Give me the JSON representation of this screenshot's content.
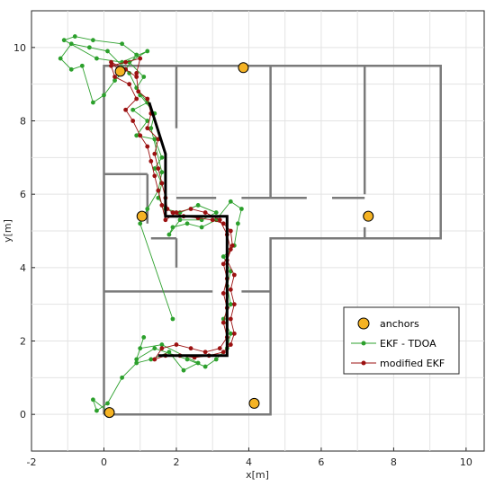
{
  "chart_data": {
    "type": "line",
    "title": "",
    "xlabel": "x[m]",
    "ylabel": "y[m]",
    "xlim": [
      -2,
      10.5
    ],
    "ylim": [
      -1,
      11
    ],
    "xticks": [
      -2,
      0,
      2,
      4,
      6,
      8,
      10
    ],
    "yticks": [
      0,
      2,
      4,
      6,
      8,
      10
    ],
    "grid": true,
    "legend_position": "bottom-right",
    "colors": {
      "walls": "#7a7a7a",
      "ground_truth": "#000000",
      "anchors_fill": "#f5b324",
      "ekf_tdoa": "#2ca02c",
      "modified_ekf": "#9b1010",
      "grid": "#e3e3e3"
    },
    "legend": [
      {
        "key": "anchors",
        "label": "anchors"
      },
      {
        "key": "ekf",
        "label": "EKF - TDOA"
      },
      {
        "key": "mekf",
        "label": "modified EKF"
      }
    ],
    "walls": [
      [
        [
          0,
          0
        ],
        [
          4.6,
          0
        ],
        [
          4.6,
          4.8
        ],
        [
          9.3,
          4.8
        ],
        [
          9.3,
          9.5
        ],
        [
          0,
          9.5
        ],
        [
          0,
          0
        ]
      ],
      [
        [
          0,
          6.55
        ],
        [
          1.2,
          6.55
        ]
      ],
      [
        [
          1.2,
          6.55
        ],
        [
          1.2,
          5.2
        ]
      ],
      [
        [
          1.3,
          4.8
        ],
        [
          2.0,
          4.8
        ]
      ],
      [
        [
          2.0,
          4.8
        ],
        [
          2.0,
          4.0
        ]
      ],
      [
        [
          0,
          3.35
        ],
        [
          2.0,
          3.35
        ]
      ],
      [
        [
          2.0,
          3.35
        ],
        [
          3.0,
          3.35
        ]
      ],
      [
        [
          3.8,
          3.35
        ],
        [
          4.6,
          3.35
        ]
      ],
      [
        [
          2.0,
          5.9
        ],
        [
          3.1,
          5.9
        ]
      ],
      [
        [
          3.8,
          5.9
        ],
        [
          5.6,
          5.9
        ]
      ],
      [
        [
          6.3,
          5.9
        ],
        [
          7.2,
          5.9
        ]
      ],
      [
        [
          2.0,
          7.8
        ],
        [
          2.0,
          9.5
        ]
      ],
      [
        [
          4.6,
          5.9
        ],
        [
          4.6,
          9.5
        ]
      ],
      [
        [
          7.2,
          6.0
        ],
        [
          7.2,
          9.5
        ]
      ],
      [
        [
          7.2,
          4.8
        ],
        [
          7.2,
          5.1
        ]
      ]
    ],
    "ground_truth": [
      [
        1.25,
        8.5
      ],
      [
        1.7,
        7.1
      ],
      [
        1.7,
        5.4
      ],
      [
        3.4,
        5.4
      ],
      [
        3.4,
        1.6
      ],
      [
        1.5,
        1.6
      ]
    ],
    "anchors": [
      [
        0.45,
        9.35
      ],
      [
        3.85,
        9.45
      ],
      [
        1.05,
        5.4
      ],
      [
        7.3,
        5.4
      ],
      [
        0.15,
        0.05
      ],
      [
        4.15,
        0.3
      ]
    ],
    "series": [
      {
        "name": "EKF - TDOA",
        "key": "ekf",
        "points": [
          [
            0.15,
            0.05
          ],
          [
            -0.3,
            0.4
          ],
          [
            -0.2,
            0.1
          ],
          [
            0.1,
            0.3
          ],
          [
            0.5,
            1.0
          ],
          [
            0.9,
            1.4
          ],
          [
            1.3,
            1.5
          ],
          [
            1.8,
            1.7
          ],
          [
            2.2,
            1.2
          ],
          [
            2.6,
            1.4
          ],
          [
            1.6,
            1.9
          ],
          [
            1.0,
            1.8
          ],
          [
            1.1,
            2.1
          ],
          [
            0.9,
            1.5
          ],
          [
            1.4,
            1.8
          ],
          [
            2.3,
            1.5
          ],
          [
            2.8,
            1.3
          ],
          [
            3.1,
            1.5
          ],
          [
            3.4,
            1.8
          ],
          [
            3.5,
            2.2
          ],
          [
            3.3,
            2.6
          ],
          [
            3.5,
            3.0
          ],
          [
            3.4,
            3.5
          ],
          [
            3.5,
            3.9
          ],
          [
            3.3,
            4.3
          ],
          [
            3.6,
            4.6
          ],
          [
            3.7,
            5.2
          ],
          [
            3.8,
            5.6
          ],
          [
            3.5,
            5.8
          ],
          [
            3.1,
            5.3
          ],
          [
            2.7,
            5.1
          ],
          [
            2.3,
            5.2
          ],
          [
            1.9,
            5.1
          ],
          [
            1.8,
            4.9
          ],
          [
            2.1,
            5.3
          ],
          [
            2.7,
            5.3
          ],
          [
            3.1,
            5.5
          ],
          [
            2.6,
            5.7
          ],
          [
            2.1,
            5.5
          ],
          [
            1.7,
            5.6
          ],
          [
            1.5,
            5.9
          ],
          [
            1.6,
            6.3
          ],
          [
            1.4,
            6.7
          ],
          [
            1.6,
            7.0
          ],
          [
            1.4,
            7.5
          ],
          [
            0.9,
            7.6
          ],
          [
            1.2,
            8.0
          ],
          [
            0.8,
            8.3
          ],
          [
            1.2,
            8.5
          ],
          [
            0.9,
            8.9
          ],
          [
            1.1,
            9.2
          ],
          [
            0.7,
            9.6
          ],
          [
            1.2,
            9.9
          ],
          [
            0.5,
            9.6
          ],
          [
            -0.2,
            9.7
          ],
          [
            -1.1,
            10.2
          ],
          [
            -0.8,
            10.3
          ],
          [
            -0.3,
            10.2
          ],
          [
            0.5,
            10.1
          ],
          [
            0.9,
            9.8
          ],
          [
            0.6,
            9.4
          ],
          [
            0.3,
            9.1
          ],
          [
            0.0,
            8.7
          ],
          [
            -0.3,
            8.5
          ],
          [
            -0.6,
            9.5
          ],
          [
            -0.9,
            9.4
          ],
          [
            -1.2,
            9.7
          ],
          [
            -0.9,
            10.1
          ],
          [
            -0.4,
            10.0
          ],
          [
            0.1,
            9.9
          ],
          [
            0.7,
            9.3
          ],
          [
            1.0,
            8.7
          ],
          [
            1.4,
            8.2
          ],
          [
            1.3,
            7.8
          ],
          [
            1.6,
            6.6
          ],
          [
            1.5,
            6.1
          ],
          [
            1.2,
            5.6
          ],
          [
            1.0,
            5.2
          ],
          [
            1.9,
            2.6
          ]
        ]
      },
      {
        "name": "modified EKF",
        "key": "mekf",
        "points": [
          [
            0.45,
            9.35
          ],
          [
            0.2,
            9.6
          ],
          [
            0.6,
            9.4
          ],
          [
            0.9,
            9.2
          ],
          [
            0.95,
            8.8
          ],
          [
            1.2,
            8.6
          ],
          [
            1.3,
            8.2
          ],
          [
            1.2,
            7.8
          ],
          [
            1.5,
            7.5
          ],
          [
            1.4,
            7.1
          ],
          [
            1.5,
            6.7
          ],
          [
            1.6,
            6.3
          ],
          [
            1.7,
            5.9
          ],
          [
            1.75,
            5.6
          ],
          [
            1.9,
            5.5
          ],
          [
            2.2,
            5.4
          ],
          [
            2.6,
            5.35
          ],
          [
            3.0,
            5.3
          ],
          [
            3.3,
            5.2
          ],
          [
            3.5,
            5.0
          ],
          [
            3.55,
            4.6
          ],
          [
            3.4,
            4.2
          ],
          [
            3.6,
            3.8
          ],
          [
            3.5,
            3.4
          ],
          [
            3.6,
            3.0
          ],
          [
            3.5,
            2.6
          ],
          [
            3.6,
            2.2
          ],
          [
            3.5,
            1.9
          ],
          [
            3.3,
            1.7
          ],
          [
            2.9,
            1.6
          ],
          [
            2.5,
            1.55
          ],
          [
            2.1,
            1.6
          ],
          [
            1.7,
            1.6
          ],
          [
            1.4,
            1.5
          ],
          [
            1.6,
            1.8
          ],
          [
            2.0,
            1.9
          ],
          [
            2.4,
            1.8
          ],
          [
            2.8,
            1.7
          ],
          [
            3.2,
            1.8
          ],
          [
            3.4,
            2.1
          ],
          [
            3.3,
            2.5
          ],
          [
            3.4,
            2.9
          ],
          [
            3.3,
            3.3
          ],
          [
            3.4,
            3.7
          ],
          [
            3.3,
            4.1
          ],
          [
            3.5,
            4.5
          ],
          [
            3.4,
            4.9
          ],
          [
            3.2,
            5.3
          ],
          [
            2.8,
            5.5
          ],
          [
            2.4,
            5.6
          ],
          [
            2.0,
            5.5
          ],
          [
            1.7,
            5.3
          ],
          [
            1.6,
            5.7
          ],
          [
            1.5,
            6.1
          ],
          [
            1.4,
            6.5
          ],
          [
            1.3,
            6.9
          ],
          [
            1.2,
            7.3
          ],
          [
            1.0,
            7.6
          ],
          [
            0.8,
            8.0
          ],
          [
            0.6,
            8.3
          ],
          [
            0.9,
            8.6
          ],
          [
            0.7,
            9.0
          ],
          [
            0.3,
            9.2
          ],
          [
            0.2,
            9.5
          ],
          [
            0.6,
            9.6
          ],
          [
            1.0,
            9.7
          ],
          [
            0.9,
            9.3
          ]
        ]
      }
    ]
  }
}
